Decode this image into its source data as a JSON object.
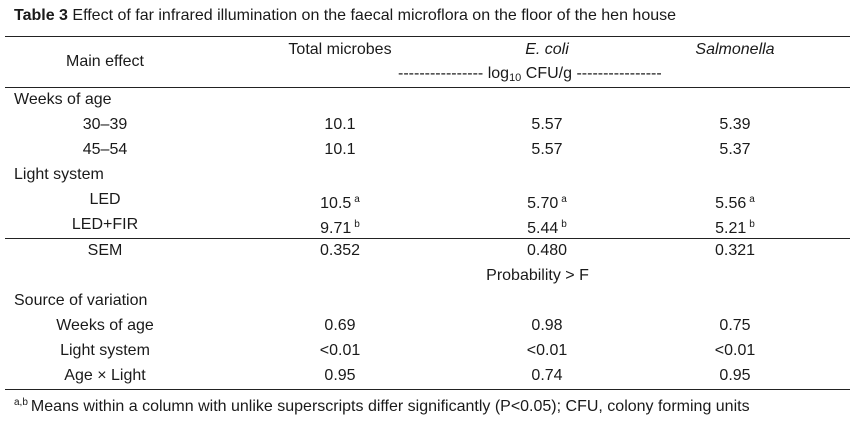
{
  "title": {
    "label": "Table 3",
    "text": "Effect of far infrared illumination on the faecal microflora on the floor of the hen house"
  },
  "header": {
    "main_effect": "Main effect",
    "total_microbes": "Total microbes",
    "ecoli": "E. coli",
    "salmonella": "Salmonella",
    "unit_dashes_left": "----------------",
    "unit_log": "log",
    "unit_sub": "10",
    "unit_rest": "CFU/g",
    "unit_dashes_right": "----------------"
  },
  "sections": {
    "weeks_heading": "Weeks of age",
    "weeks_rows": [
      {
        "label": "30–39",
        "total": "10.1",
        "ecoli": "5.57",
        "salmonella": "5.39"
      },
      {
        "label": "45–54",
        "total": "10.1",
        "ecoli": "5.57",
        "salmonella": "5.37"
      }
    ],
    "light_heading": "Light system",
    "light_rows": [
      {
        "label": "LED",
        "total": "10.5",
        "total_sup": "a",
        "ecoli": "5.70",
        "ecoli_sup": "a",
        "salmonella": "5.56",
        "salmonella_sup": "a"
      },
      {
        "label": "LED+FIR",
        "total": "9.71",
        "total_sup": "b",
        "ecoli": "5.44",
        "ecoli_sup": "b",
        "salmonella": "5.21",
        "salmonella_sup": "b"
      }
    ],
    "sem": {
      "label": "SEM",
      "total": "0.352",
      "ecoli": "0.480",
      "salmonella": "0.321"
    },
    "probability": "Probability > F",
    "source_heading": "Source of variation",
    "source_rows": [
      {
        "label": "Weeks of age",
        "total": "0.69",
        "ecoli": "0.98",
        "salmonella": "0.75"
      },
      {
        "label": "Light system",
        "total": "<0.01",
        "ecoli": "<0.01",
        "salmonella": "<0.01"
      },
      {
        "label": "Age × Light",
        "total": "0.95",
        "ecoli": "0.74",
        "salmonella": "0.95"
      }
    ]
  },
  "footnote": {
    "sup": "a,b",
    "text": "Means within a column with unlike superscripts differ significantly (P<0.05); CFU, colony forming units"
  }
}
